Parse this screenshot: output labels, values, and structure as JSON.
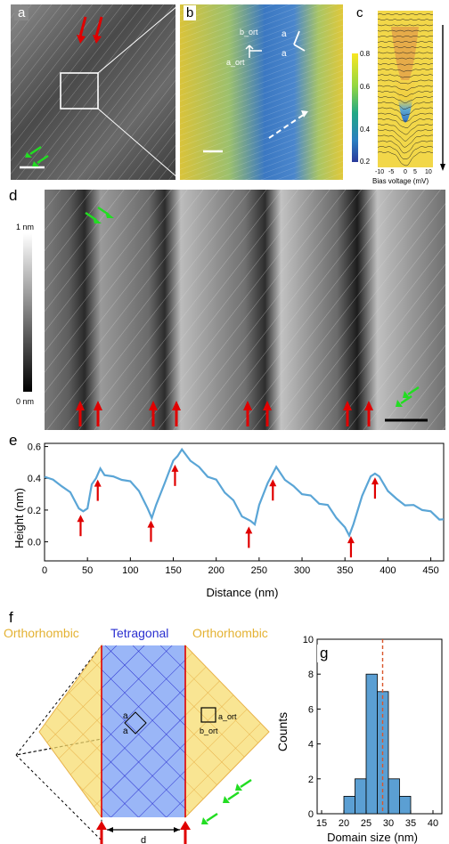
{
  "panels": {
    "a": {
      "label": "a"
    },
    "b": {
      "label": "b",
      "vec_labels": [
        "b_ort",
        "a_ort",
        "a",
        "a"
      ]
    },
    "c": {
      "label": "c",
      "colorbar_ticks": [
        "0.8",
        "0.6",
        "0.4",
        "0.2"
      ],
      "xticks": [
        "-10",
        "-5",
        "0",
        "5",
        "10"
      ],
      "xlabel": "Bias voltage (mV)"
    },
    "d": {
      "label": "d",
      "scale_top": "1 nm",
      "scale_bottom": "0 nm"
    },
    "e": {
      "label": "e",
      "xlabel": "Distance (nm)",
      "ylabel": "Height (nm)"
    },
    "f": {
      "label": "f",
      "left_title": "Orthorhombic",
      "center_title": "Tetragonal",
      "right_title": "Orthorhombic",
      "a1": "a",
      "a2": "a",
      "aort": "a_ort",
      "bort": "b_ort",
      "d": "d"
    },
    "g": {
      "label": "g",
      "xlabel": "Domain size (nm)",
      "ylabel": "Counts"
    }
  },
  "colors": {
    "line": "#5aa5d6",
    "red_arrow": "#e00000",
    "green_arrow": "#22dd22",
    "ortho": "#f7dc6f",
    "tetra": "#7fa4f5",
    "hist": "#5b9fd3"
  },
  "chart_data": [
    {
      "type": "line",
      "title": "",
      "xlabel": "Distance (nm)",
      "ylabel": "Height (nm)",
      "xlim": [
        0,
        465
      ],
      "ylim": [
        -0.12,
        0.62
      ],
      "xticks": [
        0,
        50,
        100,
        150,
        200,
        250,
        300,
        350,
        400,
        450
      ],
      "yticks": [
        0.0,
        0.2,
        0.4,
        0.6
      ],
      "x": [
        0,
        10,
        20,
        30,
        40,
        45,
        50,
        55,
        60,
        65,
        70,
        80,
        90,
        100,
        110,
        120,
        125,
        130,
        140,
        150,
        155,
        160,
        170,
        180,
        190,
        200,
        210,
        220,
        230,
        240,
        245,
        250,
        260,
        270,
        280,
        290,
        300,
        310,
        320,
        330,
        340,
        350,
        355,
        360,
        370,
        380,
        385,
        390,
        400,
        410,
        420,
        430,
        440,
        450,
        460,
        465
      ],
      "values": [
        0.42,
        0.38,
        0.36,
        0.3,
        0.22,
        0.18,
        0.22,
        0.35,
        0.41,
        0.45,
        0.43,
        0.4,
        0.4,
        0.37,
        0.33,
        0.2,
        0.16,
        0.22,
        0.38,
        0.5,
        0.55,
        0.57,
        0.52,
        0.46,
        0.42,
        0.38,
        0.32,
        0.25,
        0.17,
        0.12,
        0.12,
        0.22,
        0.38,
        0.46,
        0.4,
        0.34,
        0.31,
        0.28,
        0.25,
        0.22,
        0.16,
        0.08,
        0.05,
        0.1,
        0.3,
        0.4,
        0.44,
        0.4,
        0.33,
        0.26,
        0.24,
        0.22,
        0.21,
        0.18,
        0.15,
        0.13
      ],
      "arrows_x": [
        42,
        62,
        124,
        152,
        238,
        266,
        357,
        385
      ]
    },
    {
      "type": "bar",
      "title": "",
      "xlabel": "Domain size (nm)",
      "ylabel": "Counts",
      "xlim": [
        14,
        42
      ],
      "ylim": [
        0,
        10
      ],
      "xticks": [
        15,
        20,
        25,
        30,
        35,
        40
      ],
      "yticks": [
        0,
        2,
        4,
        6,
        8,
        10
      ],
      "bin_edges": [
        20,
        22.5,
        25,
        27.5,
        30,
        32.5,
        35,
        37.5
      ],
      "values": [
        1,
        2,
        8,
        7,
        2,
        1,
        0
      ],
      "mean_line": 28.7
    }
  ]
}
